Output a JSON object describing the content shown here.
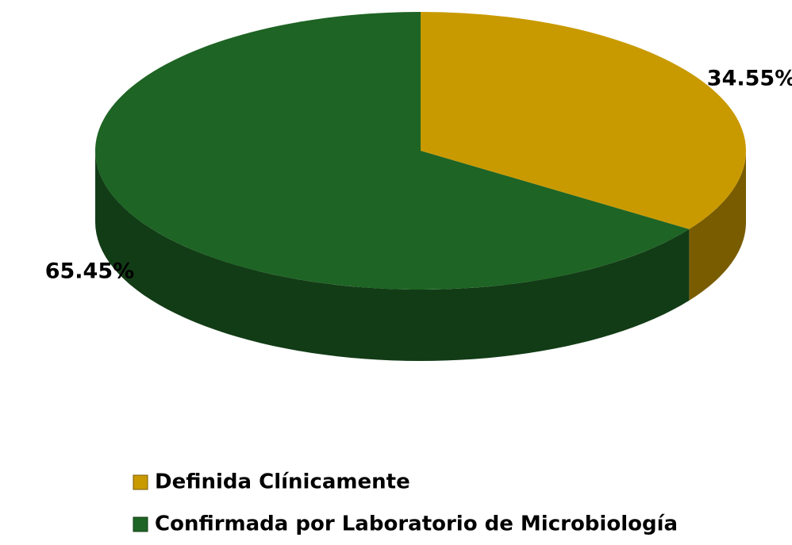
{
  "chart_data": {
    "type": "pie",
    "categories": [
      "Definida Clínicamente",
      "Confirmada por Laboratorio de Microbiología"
    ],
    "values": [
      34.55,
      65.45
    ],
    "value_labels": [
      "34.55%",
      "65.45%"
    ],
    "colors": [
      "#c99a00",
      "#1e6424"
    ],
    "legend": "bottom"
  }
}
